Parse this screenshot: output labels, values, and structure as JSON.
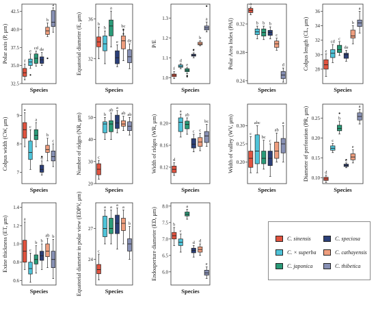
{
  "colors": {
    "C_sinensis": "#e1533f",
    "C_x_superba": "#4ec3d8",
    "C_japonica": "#2a9a78",
    "C_speciosa": "#2b3f78",
    "C_cathayensis": "#ef9e7e",
    "C_thibetica": "#8790b4"
  },
  "legend": [
    {
      "key": "C_sinensis",
      "label": "C. sinensis"
    },
    {
      "key": "C_speciosa",
      "label": "C. speciosa"
    },
    {
      "key": "C_x_superba",
      "label": "C. × superba"
    },
    {
      "key": "C_cathayensis",
      "label": "C. cathayensis"
    },
    {
      "key": "C_japonica",
      "label": "C. japonica"
    },
    {
      "key": "C_thibetica",
      "label": "C. thibetica"
    }
  ],
  "species_order": [
    "C_sinensis",
    "C_x_superba",
    "C_japonica",
    "C_speciosa",
    "C_cathayensis",
    "C_thibetica"
  ],
  "chart_data": [
    {
      "type": "box",
      "ylabel": "Polar axis (P, μm)",
      "xlabel": "Species",
      "ylim": [
        32.5,
        43.5
      ],
      "ticks": [
        32.5,
        35.0,
        37.5,
        40.0,
        42.5
      ],
      "tick_labels": [
        "32.5",
        "35.0",
        "37.5",
        "40.0",
        "42.5"
      ],
      "boxes": [
        {
          "min": 33.0,
          "q1": 33.5,
          "med": 34.0,
          "q3": 34.6,
          "max": 35.2,
          "letter": "f",
          "out": []
        },
        {
          "min": 34.6,
          "q1": 35.0,
          "med": 35.5,
          "q3": 35.9,
          "max": 36.6,
          "letter": "e",
          "out": [
            33.7
          ]
        },
        {
          "min": 34.9,
          "q1": 35.3,
          "med": 36.0,
          "q3": 36.6,
          "max": 37.0,
          "letter": "cd",
          "out": []
        },
        {
          "min": 35.0,
          "q1": 35.3,
          "med": 35.8,
          "q3": 36.2,
          "max": 36.8,
          "letter": "de",
          "out": []
        },
        {
          "min": 39.0,
          "q1": 39.3,
          "med": 39.8,
          "q3": 40.3,
          "max": 40.9,
          "letter": "b",
          "out": [
            36.0
          ]
        },
        {
          "min": 39.6,
          "q1": 40.4,
          "med": 41.0,
          "q3": 42.6,
          "max": 43.0,
          "letter": "a",
          "out": []
        }
      ]
    },
    {
      "type": "box",
      "ylabel": "Equatorial diameter (E, μm)",
      "xlabel": "Species",
      "ylim": [
        29.5,
        37.5
      ],
      "ticks": [
        32,
        36
      ],
      "tick_labels": [
        "32",
        "36"
      ],
      "boxes": [
        {
          "min": 32.0,
          "q1": 33.2,
          "med": 33.7,
          "q3": 34.2,
          "max": 35.2,
          "letter": "b",
          "out": []
        },
        {
          "min": 31.5,
          "q1": 32.8,
          "med": 33.5,
          "q3": 34.3,
          "max": 34.8,
          "letter": "b",
          "out": []
        },
        {
          "min": 33.2,
          "q1": 34.3,
          "med": 35.3,
          "q3": 35.9,
          "max": 36.8,
          "letter": "a",
          "out": []
        },
        {
          "min": 31.2,
          "q1": 31.5,
          "med": 32.1,
          "q3": 32.8,
          "max": 33.4,
          "letter": "e",
          "out": []
        },
        {
          "min": 31.8,
          "q1": 33.0,
          "med": 33.8,
          "q3": 34.3,
          "max": 35.0,
          "letter": "bc",
          "out": [
            34.5,
            34.9
          ]
        },
        {
          "min": 31.0,
          "q1": 31.6,
          "med": 32.2,
          "q3": 32.9,
          "max": 33.5,
          "letter": "de",
          "out": []
        }
      ]
    },
    {
      "type": "box",
      "ylabel": "P/E",
      "xlabel": "Species",
      "ylim": [
        0.97,
        1.37
      ],
      "ticks": [
        1.0,
        1.1,
        1.2,
        1.3
      ],
      "tick_labels": [
        "1.0",
        "1.1",
        "1.2",
        "1.3"
      ],
      "boxes": [
        {
          "min": 0.995,
          "q1": 1.005,
          "med": 1.012,
          "q3": 1.018,
          "max": 1.03,
          "letter": "f",
          "out": []
        },
        {
          "min": 1.045,
          "q1": 1.052,
          "med": 1.057,
          "q3": 1.064,
          "max": 1.07,
          "letter": "d",
          "out": []
        },
        {
          "min": 1.02,
          "q1": 1.03,
          "med": 1.037,
          "q3": 1.045,
          "max": 1.05,
          "letter": "e",
          "out": [
            1.01,
            1.005
          ]
        },
        {
          "min": 1.1,
          "q1": 1.108,
          "med": 1.113,
          "q3": 1.118,
          "max": 1.125,
          "letter": "c",
          "out": [
            1.14
          ]
        },
        {
          "min": 1.16,
          "q1": 1.165,
          "med": 1.17,
          "q3": 1.178,
          "max": 1.185,
          "letter": "b",
          "out": []
        },
        {
          "min": 1.23,
          "q1": 1.24,
          "med": 1.25,
          "q3": 1.26,
          "max": 1.28,
          "letter": "a",
          "out": [
            1.36
          ]
        }
      ]
    },
    {
      "type": "box",
      "ylabel": "Polar Area Index (PAI)",
      "xlabel": "Species",
      "ylim": [
        0.236,
        0.348
      ],
      "ticks": [
        0.24,
        0.28,
        0.32
      ],
      "tick_labels": [
        "0.24",
        "0.28",
        "0.32"
      ],
      "boxes": [
        {
          "min": 0.333,
          "q1": 0.336,
          "med": 0.339,
          "q3": 0.342,
          "max": 0.344,
          "letter": "a",
          "out": []
        },
        {
          "min": 0.299,
          "q1": 0.305,
          "med": 0.309,
          "q3": 0.313,
          "max": 0.317,
          "letter": "b",
          "out": []
        },
        {
          "min": 0.298,
          "q1": 0.303,
          "med": 0.308,
          "q3": 0.313,
          "max": 0.317,
          "letter": "b",
          "out": []
        },
        {
          "min": 0.299,
          "q1": 0.304,
          "med": 0.308,
          "q3": 0.311,
          "max": 0.316,
          "letter": "b",
          "out": []
        },
        {
          "min": 0.283,
          "q1": 0.287,
          "med": 0.292,
          "q3": 0.296,
          "max": 0.3,
          "letter": "c",
          "out": []
        },
        {
          "min": 0.238,
          "q1": 0.243,
          "med": 0.248,
          "q3": 0.253,
          "max": 0.258,
          "letter": "d",
          "out": []
        }
      ]
    },
    {
      "type": "box",
      "ylabel": "Colpus length (CL, μm)",
      "xlabel": "Species",
      "ylim": [
        26,
        37
      ],
      "ticks": [
        28,
        30,
        32,
        34,
        36
      ],
      "tick_labels": [
        "28",
        "30",
        "32",
        "34",
        "36"
      ],
      "boxes": [
        {
          "min": 27.0,
          "q1": 28.0,
          "med": 28.6,
          "q3": 29.3,
          "max": 30.1,
          "letter": "e",
          "out": []
        },
        {
          "min": 28.9,
          "q1": 29.6,
          "med": 30.2,
          "q3": 30.7,
          "max": 31.4,
          "letter": "cd",
          "out": []
        },
        {
          "min": 29.9,
          "q1": 30.3,
          "med": 30.7,
          "q3": 31.3,
          "max": 31.8,
          "letter": "c",
          "out": []
        },
        {
          "min": 29.1,
          "q1": 29.5,
          "med": 30.0,
          "q3": 30.2,
          "max": 30.6,
          "letter": "de",
          "out": []
        },
        {
          "min": 31.5,
          "q1": 32.3,
          "med": 32.6,
          "q3": 33.4,
          "max": 34.0,
          "letter": "b",
          "out": []
        },
        {
          "min": 33.0,
          "q1": 33.9,
          "med": 34.4,
          "q3": 34.8,
          "max": 36.0,
          "letter": "a",
          "out": []
        }
      ]
    },
    {
      "type": "box",
      "ylabel": "Colpus width (CW, μm)",
      "xlabel": "Species",
      "ylim": [
        6.6,
        9.4
      ],
      "ticks": [
        7,
        8,
        9
      ],
      "tick_labels": [
        "7",
        "8",
        "9"
      ],
      "boxes": [
        {
          "min": 7.9,
          "q1": 8.2,
          "med": 8.5,
          "q3": 8.75,
          "max": 9.1,
          "letter": "a",
          "out": []
        },
        {
          "min": 7.1,
          "q1": 7.45,
          "med": 7.7,
          "q3": 8.1,
          "max": 8.5,
          "letter": "c",
          "out": []
        },
        {
          "min": 7.9,
          "q1": 8.15,
          "med": 8.3,
          "q3": 8.5,
          "max": 8.75,
          "letter": "a",
          "out": []
        },
        {
          "min": 6.9,
          "q1": 7.0,
          "med": 7.1,
          "q3": 7.25,
          "max": 7.4,
          "letter": "d",
          "out": [
            7.55
          ]
        },
        {
          "min": 7.4,
          "q1": 7.7,
          "med": 7.8,
          "q3": 7.95,
          "max": 8.2,
          "letter": "b",
          "out": []
        },
        {
          "min": 7.2,
          "q1": 7.4,
          "med": 7.55,
          "q3": 7.75,
          "max": 8.0,
          "letter": "c",
          "out": []
        }
      ]
    },
    {
      "type": "box",
      "ylabel": "Number of ridges (NR, μm)",
      "xlabel": "Species",
      "ylim": [
        20,
        56
      ],
      "ticks": [
        20,
        30,
        40,
        50
      ],
      "tick_labels": [
        "20",
        "30",
        "40",
        "50"
      ],
      "boxes": [
        {
          "min": 22.0,
          "q1": 24.0,
          "med": 26.5,
          "q3": 29.0,
          "max": 30.5,
          "letter": "c",
          "out": []
        },
        {
          "min": 40.0,
          "q1": 43.0,
          "med": 47.0,
          "q3": 48.0,
          "max": 50.0,
          "letter": "b",
          "out": []
        },
        {
          "min": 40.0,
          "q1": 43.5,
          "med": 47.0,
          "q3": 48.5,
          "max": 52.0,
          "letter": "ab",
          "out": []
        },
        {
          "min": 43.0,
          "q1": 45.0,
          "med": 47.5,
          "q3": 51.0,
          "max": 53.0,
          "letter": "a",
          "out": []
        },
        {
          "min": 44.0,
          "q1": 46.0,
          "med": 47.0,
          "q3": 48.5,
          "max": 50.5,
          "letter": "ab",
          "out": []
        },
        {
          "min": 42.0,
          "q1": 44.0,
          "med": 46.0,
          "q3": 48.0,
          "max": 50.0,
          "letter": "ab",
          "out": []
        }
      ]
    },
    {
      "type": "box",
      "ylabel": "Width of ridges (WR, μm)",
      "xlabel": "Species",
      "ylim": [
        0.09,
        0.235
      ],
      "ticks": [
        0.12,
        0.16,
        0.2
      ],
      "tick_labels": [
        "0.12",
        "0.16",
        "0.20"
      ],
      "boxes": [
        {
          "min": 0.105,
          "q1": 0.11,
          "med": 0.116,
          "q3": 0.122,
          "max": 0.128,
          "letter": "d",
          "out": []
        },
        {
          "min": 0.175,
          "q1": 0.185,
          "med": 0.202,
          "q3": 0.21,
          "max": 0.217,
          "letter": "a",
          "out": []
        },
        {
          "min": 0.18,
          "q1": 0.19,
          "med": 0.198,
          "q3": 0.204,
          "max": 0.21,
          "letter": "ab",
          "out": []
        },
        {
          "min": 0.148,
          "q1": 0.155,
          "med": 0.162,
          "q3": 0.172,
          "max": 0.18,
          "letter": "c",
          "out": []
        },
        {
          "min": 0.15,
          "q1": 0.158,
          "med": 0.166,
          "q3": 0.174,
          "max": 0.182,
          "letter": "c",
          "out": []
        },
        {
          "min": 0.158,
          "q1": 0.165,
          "med": 0.177,
          "q3": 0.185,
          "max": 0.198,
          "letter": "bc",
          "out": []
        }
      ]
    },
    {
      "type": "box",
      "ylabel": "Width of valley (WV, μm)",
      "xlabel": "Species",
      "ylim": [
        0.14,
        0.36
      ],
      "ticks": [
        0.2,
        0.25,
        0.3
      ],
      "tick_labels": [
        "0.20",
        "0.25",
        "0.30"
      ],
      "boxes": [
        {
          "min": 0.17,
          "q1": 0.185,
          "med": 0.21,
          "q3": 0.23,
          "max": 0.27,
          "letter": "c",
          "out": []
        },
        {
          "min": 0.17,
          "q1": 0.195,
          "med": 0.23,
          "q3": 0.275,
          "max": 0.3,
          "letter": "abc",
          "out": []
        },
        {
          "min": 0.18,
          "q1": 0.195,
          "med": 0.21,
          "q3": 0.23,
          "max": 0.26,
          "letter": "bc",
          "out": []
        },
        {
          "min": 0.16,
          "q1": 0.19,
          "med": 0.21,
          "q3": 0.23,
          "max": 0.25,
          "letter": "c",
          "out": []
        },
        {
          "min": 0.2,
          "q1": 0.21,
          "med": 0.23,
          "q3": 0.255,
          "max": 0.28,
          "letter": "ab",
          "out": []
        },
        {
          "min": 0.2,
          "q1": 0.225,
          "med": 0.25,
          "q3": 0.265,
          "max": 0.3,
          "letter": "a",
          "out": []
        }
      ]
    },
    {
      "type": "box",
      "ylabel": "Diameter of perforation (PR, μm)",
      "xlabel": "Species",
      "ylim": [
        0.085,
        0.285
      ],
      "ticks": [
        0.1,
        0.15,
        0.2,
        0.25
      ],
      "tick_labels": [
        "0.10",
        "0.15",
        "0.20",
        "0.25"
      ],
      "boxes": [
        {
          "min": 0.088,
          "q1": 0.093,
          "med": 0.097,
          "q3": 0.101,
          "max": 0.106,
          "letter": "d",
          "out": []
        },
        {
          "min": 0.163,
          "q1": 0.169,
          "med": 0.174,
          "q3": 0.18,
          "max": 0.186,
          "letter": "c",
          "out": []
        },
        {
          "min": 0.21,
          "q1": 0.218,
          "med": 0.224,
          "q3": 0.232,
          "max": 0.242,
          "letter": "b",
          "out": [
            0.262
          ]
        },
        {
          "min": 0.125,
          "q1": 0.128,
          "med": 0.131,
          "q3": 0.134,
          "max": 0.137,
          "letter": "e",
          "out": [
            0.145
          ]
        },
        {
          "min": 0.137,
          "q1": 0.145,
          "med": 0.152,
          "q3": 0.16,
          "max": 0.17,
          "letter": "e",
          "out": []
        },
        {
          "min": 0.235,
          "q1": 0.245,
          "med": 0.254,
          "q3": 0.263,
          "max": 0.272,
          "letter": "a",
          "out": []
        }
      ]
    },
    {
      "type": "box",
      "ylabel": "Exine thickness (ET, μm)",
      "xlabel": "Species",
      "ylim": [
        0.55,
        1.45
      ],
      "ticks": [
        0.6,
        0.8,
        1.0,
        1.2,
        1.4
      ],
      "tick_labels": [
        "0.6",
        "0.8",
        "1.0",
        "1.2",
        "1.4"
      ],
      "boxes": [
        {
          "min": 0.72,
          "q1": 0.8,
          "med": 0.92,
          "q3": 1.04,
          "max": 1.24,
          "letter": "a",
          "out": []
        },
        {
          "min": 0.58,
          "q1": 0.67,
          "med": 0.73,
          "q3": 0.8,
          "max": 0.9,
          "letter": "c",
          "out": []
        },
        {
          "min": 0.68,
          "q1": 0.78,
          "med": 0.83,
          "q3": 0.88,
          "max": 0.98,
          "letter": "b",
          "out": []
        },
        {
          "min": 0.72,
          "q1": 0.82,
          "med": 0.87,
          "q3": 0.92,
          "max": 1.0,
          "letter": "b",
          "out": []
        },
        {
          "min": 0.74,
          "q1": 0.86,
          "med": 0.92,
          "q3": 1.0,
          "max": 1.06,
          "letter": "ab",
          "out": []
        },
        {
          "min": 0.62,
          "q1": 0.74,
          "med": 0.83,
          "q3": 0.92,
          "max": 1.05,
          "letter": "b",
          "out": []
        }
      ]
    },
    {
      "type": "box",
      "ylabel": "Equatorial diameter in polar view (EDPV, μm)",
      "xlabel": "Species",
      "ylim": [
        21.5,
        29.5
      ],
      "ticks": [
        24,
        27
      ],
      "tick_labels": [
        "24",
        "27"
      ],
      "boxes": [
        {
          "min": 22.0,
          "q1": 22.6,
          "med": 23.0,
          "q3": 23.5,
          "max": 24.5,
          "letter": "c",
          "out": []
        },
        {
          "min": 25.5,
          "q1": 26.2,
          "med": 27.0,
          "q3": 28.2,
          "max": 28.8,
          "letter": "a",
          "out": []
        },
        {
          "min": 25.5,
          "q1": 26.5,
          "med": 27.0,
          "q3": 28.0,
          "max": 28.8,
          "letter": "a",
          "out": []
        },
        {
          "min": 25.0,
          "q1": 26.5,
          "med": 27.5,
          "q3": 28.3,
          "max": 29.0,
          "letter": "a",
          "out": []
        },
        {
          "min": 25.5,
          "q1": 26.8,
          "med": 27.5,
          "q3": 28.0,
          "max": 28.8,
          "letter": "a",
          "out": []
        },
        {
          "min": 24.0,
          "q1": 24.8,
          "med": 25.5,
          "q3": 26.0,
          "max": 27.2,
          "letter": "b",
          "out": []
        }
      ]
    },
    {
      "type": "box",
      "ylabel": "Endoaperture diameter (ED, μm)",
      "xlabel": "Species",
      "ylim": [
        5.6,
        8.1
      ],
      "ticks": [
        6.0,
        6.5,
        7.0,
        7.5,
        8.0
      ],
      "tick_labels": [
        "6.0",
        "6.5",
        "7.0",
        "7.5",
        "8.0"
      ],
      "boxes": [
        {
          "min": 6.8,
          "q1": 7.0,
          "med": 7.1,
          "q3": 7.2,
          "max": 7.35,
          "letter": "b",
          "out": []
        },
        {
          "min": 6.6,
          "q1": 6.8,
          "med": 6.9,
          "q3": 7.0,
          "max": 7.15,
          "letter": "c",
          "out": []
        },
        {
          "min": 7.6,
          "q1": 7.7,
          "med": 7.75,
          "q3": 7.82,
          "max": 7.9,
          "letter": "a",
          "out": []
        },
        {
          "min": 6.45,
          "q1": 6.58,
          "med": 6.65,
          "q3": 6.72,
          "max": 6.8,
          "letter": "d",
          "out": []
        },
        {
          "min": 6.5,
          "q1": 6.6,
          "med": 6.68,
          "q3": 6.76,
          "max": 6.85,
          "letter": "d",
          "out": []
        },
        {
          "min": 5.8,
          "q1": 5.9,
          "med": 5.97,
          "q3": 6.05,
          "max": 6.15,
          "letter": "e",
          "out": []
        }
      ]
    }
  ]
}
